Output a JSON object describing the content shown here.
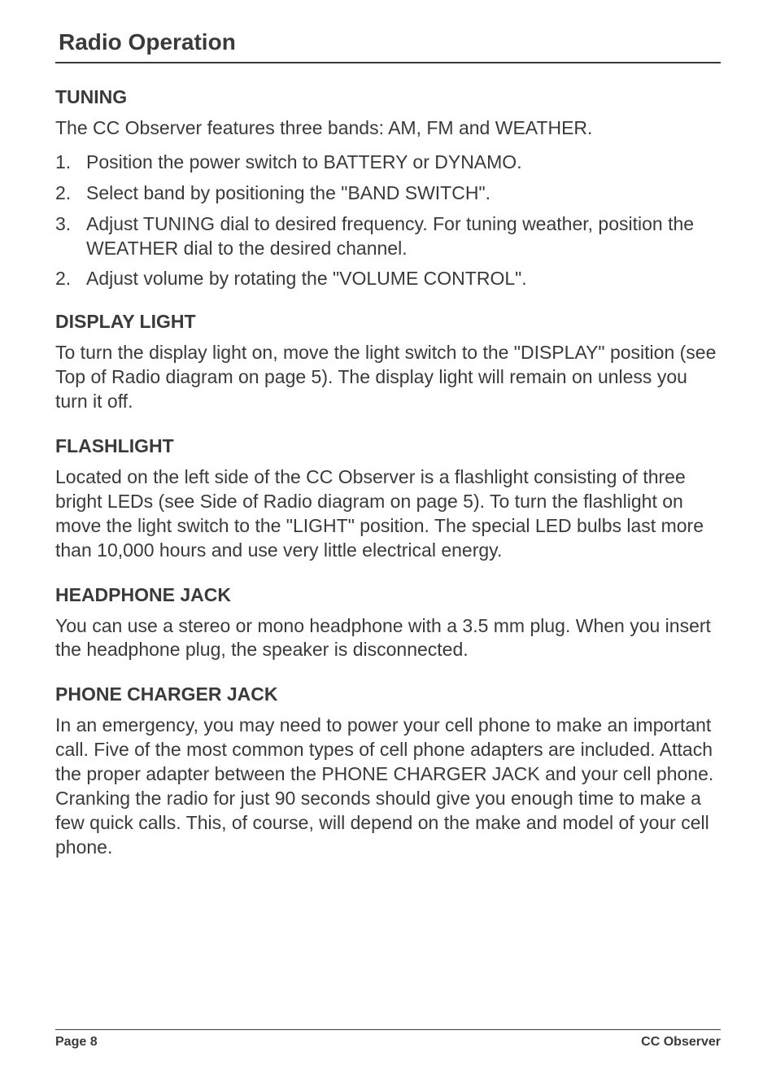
{
  "page": {
    "title": "Radio Operation",
    "footer_left": "Page 8",
    "footer_right": "CC Observer"
  },
  "tuning": {
    "heading": "TUNING",
    "intro": "The CC Observer features three bands: AM, FM and WEATHER.",
    "items": [
      {
        "num": "1.",
        "text": "Position the power switch to BATTERY or DYNAMO."
      },
      {
        "num": "2.",
        "text": "Select band by positioning the \"BAND SWITCH\"."
      },
      {
        "num": "3.",
        "text": "Adjust TUNING dial to desired frequency. For tuning weather, position the WEATHER dial to the desired channel."
      },
      {
        "num": "2.",
        "text": "Adjust volume by rotating the \"VOLUME CONTROL\"."
      }
    ]
  },
  "display_light": {
    "heading": "DISPLAY LIGHT",
    "body": "To turn the display light on, move the light switch to the \"DISPLAY\" position (see Top of Radio diagram on page 5). The display light will remain on unless you turn it off."
  },
  "flashlight": {
    "heading": "FLASHLIGHT",
    "body": "Located on the left side of the CC Observer is a flashlight consisting of three bright LEDs (see Side of Radio diagram on page 5). To turn the flashlight on move the light switch to the \"LIGHT\" position. The special LED bulbs last more than 10,000 hours and use very little electrical energy."
  },
  "headphone": {
    "heading": "HEADPHONE JACK",
    "body": "You can use a stereo or mono headphone with a 3.5 mm plug. When you insert the headphone plug, the speaker is disconnected."
  },
  "phone_charger": {
    "heading": "PHONE CHARGER JACK",
    "body": "In an emergency, you may need to power your cell phone to make an important call. Five of the most common types of cell phone adapters are included. Attach the proper adapter between the PHONE CHARGER JACK and your cell phone. Cranking the radio for just 90 seconds should give you enough time to make a few quick calls. This, of course, will depend on the make and model of your cell phone."
  }
}
